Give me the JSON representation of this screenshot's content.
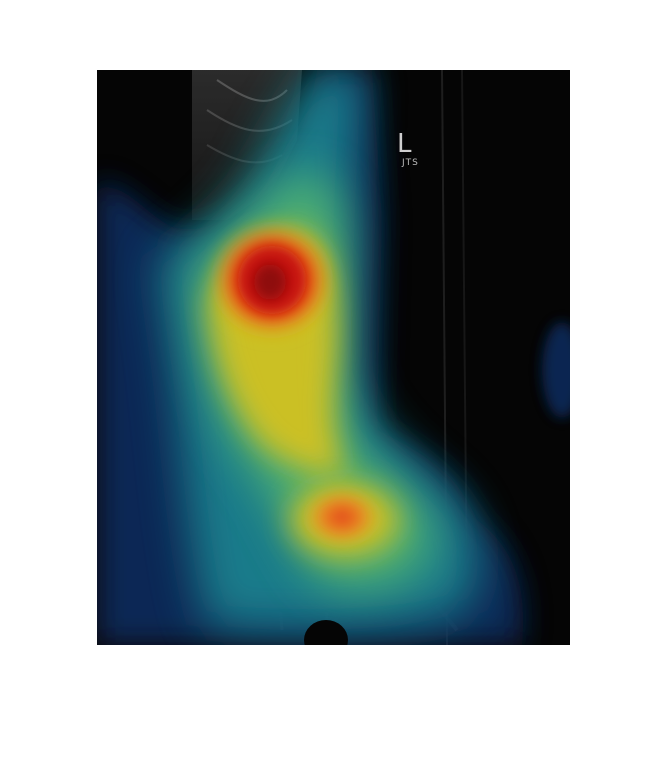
{
  "image": {
    "subject": "x-ray-with-heatmap-overlay",
    "side_marker": {
      "letter": "L",
      "initials": "JTS"
    },
    "colors": {
      "background": "#ffffff",
      "xray_background": "#000000",
      "heatmap_low": "#0a2a5a",
      "heatmap_mid": "#1fa3a0",
      "heatmap_warm": "#d9c21a",
      "heatmap_high": "#e0201a",
      "heatmap_peak": "#8a0a0a"
    }
  }
}
